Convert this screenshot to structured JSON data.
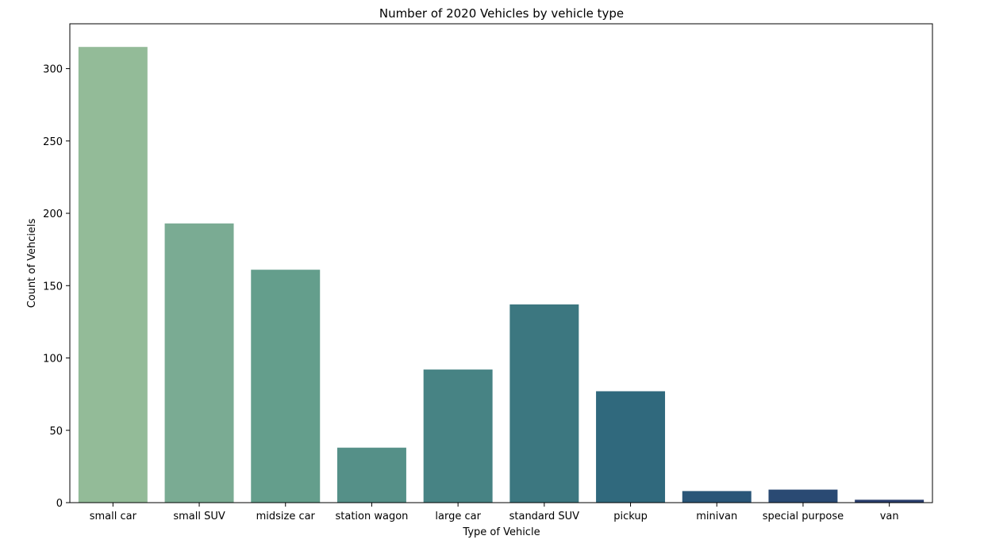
{
  "chart_data": {
    "type": "bar",
    "title": "Number of 2020 Vehicles by vehicle type",
    "xlabel": "Type of Vehicle",
    "ylabel": "Count of Vehciels",
    "categories": [
      "small car",
      "small SUV",
      "midsize car",
      "station wagon",
      "large car",
      "standard SUV",
      "pickup",
      "minivan",
      "special purpose",
      "van"
    ],
    "values": [
      315,
      193,
      161,
      38,
      92,
      137,
      77,
      8,
      9,
      2
    ],
    "colors": [
      "#93bb98",
      "#7aab93",
      "#649e8c",
      "#559088",
      "#478384",
      "#3c7780",
      "#30697d",
      "#2a5678",
      "#2a4a73",
      "#2a3f6e"
    ],
    "ylim": [
      0,
      331
    ],
    "yticks": [
      0,
      50,
      100,
      150,
      200,
      250,
      300
    ],
    "grid": false,
    "legend": "none"
  }
}
